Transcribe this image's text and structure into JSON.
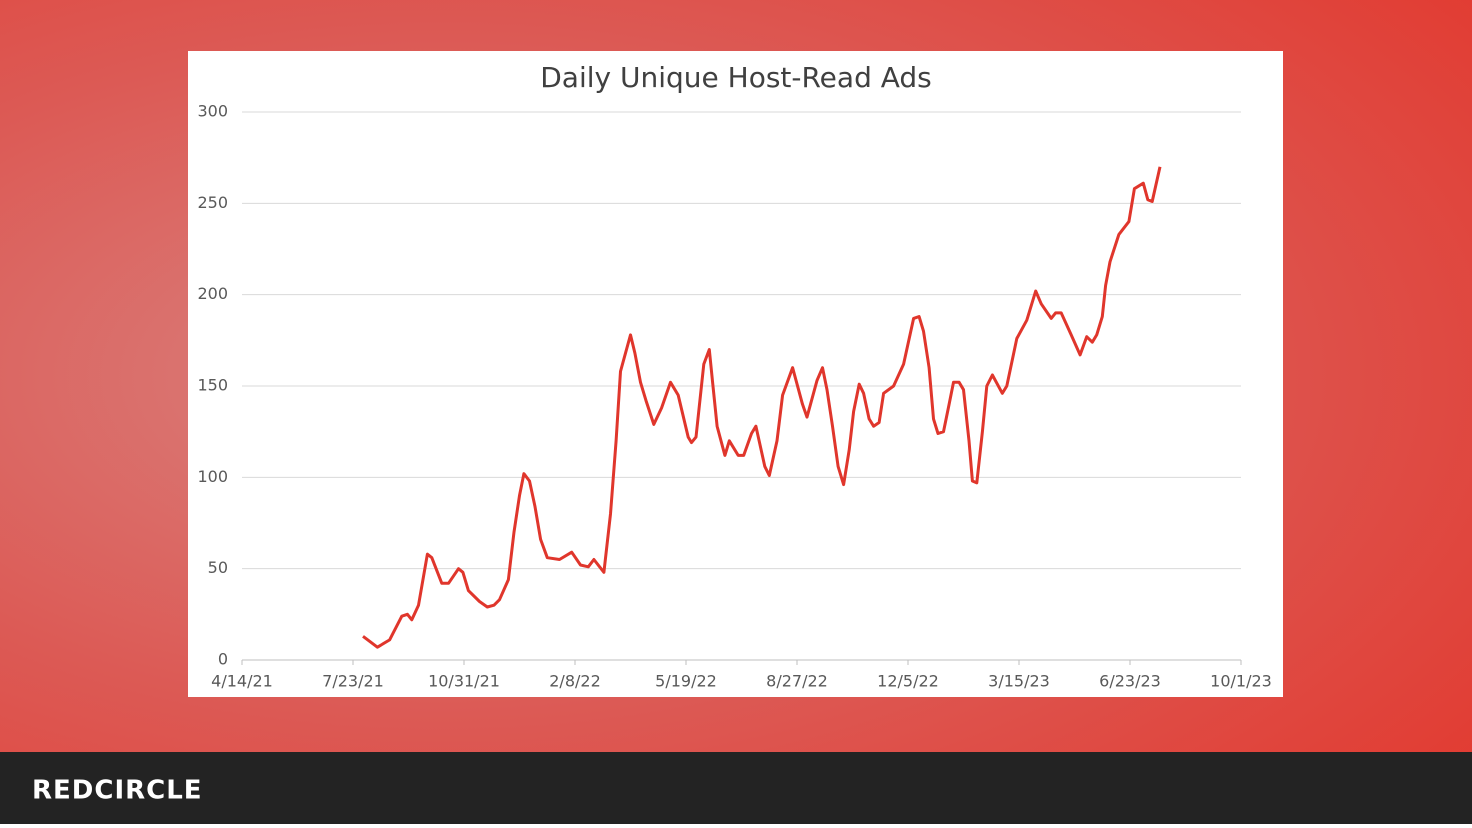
{
  "logo": "REDCIRCLE",
  "chart_data": {
    "type": "line",
    "title": "Daily Unique Host-Read Ads",
    "x": [
      "2021-08-01",
      "2021-08-14",
      "2021-08-25",
      "2021-09-05",
      "2021-09-10",
      "2021-09-14",
      "2021-09-20",
      "2021-09-28",
      "2021-10-02",
      "2021-10-11",
      "2021-10-17",
      "2021-10-26",
      "2021-10-30",
      "2021-11-04",
      "2021-11-14",
      "2021-11-21",
      "2021-11-27",
      "2021-12-02",
      "2021-12-10",
      "2021-12-15",
      "2021-12-20",
      "2021-12-24",
      "2021-12-29",
      "2022-01-03",
      "2022-01-08",
      "2022-01-14",
      "2022-01-25",
      "2022-02-05",
      "2022-02-13",
      "2022-02-20",
      "2022-02-25",
      "2022-03-06",
      "2022-03-12",
      "2022-03-17",
      "2022-03-21",
      "2022-03-30",
      "2022-04-03",
      "2022-04-08",
      "2022-04-13",
      "2022-04-20",
      "2022-04-27",
      "2022-05-05",
      "2022-05-12",
      "2022-05-21",
      "2022-05-24",
      "2022-05-28",
      "2022-06-04",
      "2022-06-09",
      "2022-06-12",
      "2022-06-16",
      "2022-06-23",
      "2022-06-27",
      "2022-07-05",
      "2022-07-10",
      "2022-07-17",
      "2022-07-21",
      "2022-07-29",
      "2022-08-02",
      "2022-08-09",
      "2022-08-14",
      "2022-08-23",
      "2022-09-01",
      "2022-09-05",
      "2022-09-14",
      "2022-09-19",
      "2022-09-23",
      "2022-09-28",
      "2022-10-03",
      "2022-10-08",
      "2022-10-13",
      "2022-10-17",
      "2022-10-22",
      "2022-10-26",
      "2022-10-31",
      "2022-11-04",
      "2022-11-09",
      "2022-11-13",
      "2022-11-22",
      "2022-12-01",
      "2022-12-10",
      "2022-12-15",
      "2022-12-19",
      "2022-12-24",
      "2022-12-28",
      "2023-01-01",
      "2023-01-06",
      "2023-01-11",
      "2023-01-15",
      "2023-01-20",
      "2023-01-24",
      "2023-01-29",
      "2023-02-01",
      "2023-02-05",
      "2023-02-10",
      "2023-02-14",
      "2023-02-19",
      "2023-02-28",
      "2023-03-04",
      "2023-03-13",
      "2023-03-22",
      "2023-03-30",
      "2023-04-04",
      "2023-04-13",
      "2023-04-17",
      "2023-04-22",
      "2023-05-01",
      "2023-05-09",
      "2023-05-15",
      "2023-05-20",
      "2023-05-24",
      "2023-05-29",
      "2023-06-01",
      "2023-06-05",
      "2023-06-13",
      "2023-06-22",
      "2023-06-27",
      "2023-07-05",
      "2023-07-09",
      "2023-07-13",
      "2023-07-20"
    ],
    "values": [
      13,
      7,
      11,
      24,
      25,
      22,
      30,
      58,
      56,
      42,
      42,
      50,
      48,
      38,
      32,
      29,
      30,
      33,
      44,
      70,
      90,
      102,
      98,
      84,
      66,
      56,
      55,
      59,
      52,
      51,
      55,
      48,
      80,
      120,
      158,
      178,
      168,
      152,
      142,
      129,
      138,
      152,
      145,
      122,
      119,
      122,
      162,
      170,
      152,
      128,
      112,
      120,
      112,
      112,
      124,
      128,
      106,
      101,
      120,
      145,
      160,
      140,
      133,
      153,
      160,
      148,
      128,
      106,
      96,
      115,
      136,
      151,
      146,
      132,
      128,
      130,
      146,
      150,
      162,
      187,
      188,
      180,
      160,
      132,
      124,
      125,
      140,
      152,
      152,
      148,
      120,
      98,
      97,
      125,
      150,
      156,
      146,
      150,
      176,
      186,
      202,
      195,
      187,
      190,
      190,
      178,
      167,
      177,
      174,
      178,
      188,
      205,
      218,
      233,
      240,
      258,
      261,
      252,
      251,
      270
    ],
    "color": "#e0362c",
    "xlim": [
      "2021-04-14",
      "2023-10-01"
    ],
    "xticks": [
      {
        "value": "2021-04-14",
        "label": "4/14/21"
      },
      {
        "value": "2021-07-23",
        "label": "7/23/21"
      },
      {
        "value": "2021-10-31",
        "label": "10/31/21"
      },
      {
        "value": "2022-02-08",
        "label": "2/8/22"
      },
      {
        "value": "2022-05-19",
        "label": "5/19/22"
      },
      {
        "value": "2022-08-27",
        "label": "8/27/22"
      },
      {
        "value": "2022-12-05",
        "label": "12/5/22"
      },
      {
        "value": "2023-03-15",
        "label": "3/15/23"
      },
      {
        "value": "2023-06-23",
        "label": "6/23/23"
      },
      {
        "value": "2023-10-01",
        "label": "10/1/23"
      }
    ],
    "ylim": [
      0,
      300
    ],
    "yticks": [
      0,
      50,
      100,
      150,
      200,
      250,
      300
    ],
    "grid": true
  }
}
